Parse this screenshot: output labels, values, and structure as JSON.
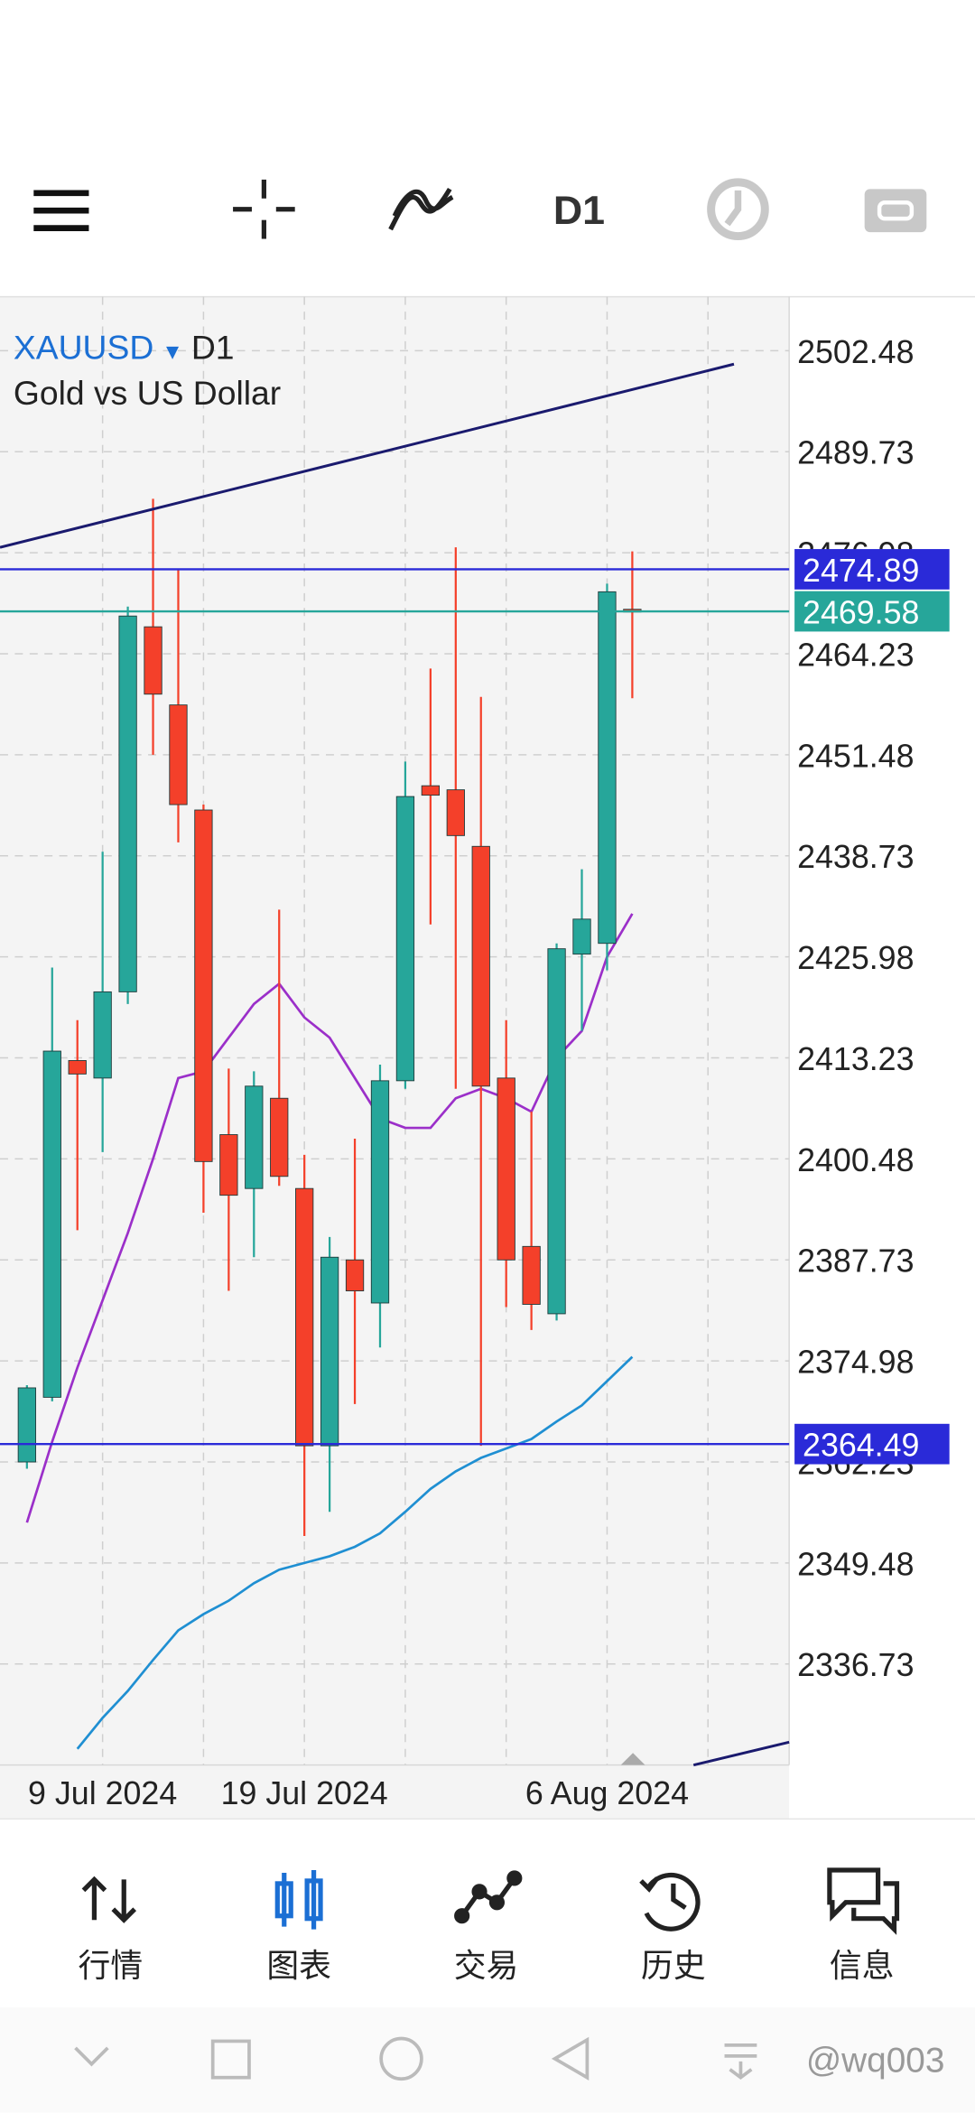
{
  "toolbar": {
    "timeframe": "D1"
  },
  "chart_data": {
    "type": "candlestick",
    "symbol": "XAUUSD",
    "timeframe": "D1",
    "subtitle": "Gold vs US Dollar",
    "categories": [
      null,
      null,
      null,
      "9 Jul 2024",
      null,
      null,
      null,
      null,
      null,
      null,
      null,
      "19 Jul 2024",
      null,
      null,
      null,
      null,
      null,
      null,
      null,
      null,
      null,
      null,
      null,
      "6 Aug 2024",
      null
    ],
    "open": [
      2362.23,
      2370.39,
      2412.89,
      2410.68,
      2421.56,
      2467.63,
      2457.77,
      2444.51,
      2403.54,
      2396.74,
      2408.13,
      2396.74,
      2364.27,
      2387.73,
      2382.29,
      2410.34,
      2447.57,
      2447.06,
      2439.92,
      2410.68,
      2389.43,
      2380.93,
      2426.32,
      2427.68,
      2469.84
    ],
    "high": [
      2371.92,
      2424.62,
      2417.99,
      2439.24,
      2470.18,
      2483.78,
      2474.94,
      2445.19,
      2411.87,
      2411.53,
      2431.93,
      2400.99,
      2390.62,
      2403.03,
      2412.38,
      2450.63,
      2462.36,
      2477.66,
      2458.79,
      2417.99,
      2406.43,
      2427.68,
      2437.03,
      2473.07,
      2477.15
    ],
    "low": [
      2361.38,
      2369.88,
      2391.47,
      2401.33,
      2420.03,
      2451.48,
      2440.43,
      2393.68,
      2383.82,
      2388.07,
      2397.08,
      2352.88,
      2355.94,
      2369.54,
      2376.68,
      2409.32,
      2430.06,
      2409.32,
      2364.27,
      2381.78,
      2378.89,
      2380.08,
      2416.63,
      2424.28,
      2458.62
    ],
    "close": [
      2371.58,
      2414.08,
      2411.19,
      2421.56,
      2468.99,
      2459.13,
      2445.19,
      2400.14,
      2395.89,
      2409.66,
      2398.27,
      2364.27,
      2388.07,
      2383.82,
      2410.34,
      2446.21,
      2446.38,
      2441.28,
      2409.66,
      2387.73,
      2382.12,
      2427.0,
      2430.74,
      2472.05,
      2469.58
    ],
    "up_color": "#26a69a",
    "down_color": "#f4402a",
    "ylim": [
      2323.98,
      2509.28
    ],
    "yticks": [
      2336.73,
      2349.48,
      2362.23,
      2374.98,
      2387.73,
      2400.48,
      2413.23,
      2425.98,
      2438.73,
      2451.48,
      2464.23,
      2476.98,
      2489.73,
      2502.48
    ],
    "grid": true,
    "overlays": [
      {
        "color": "#9b2fc9",
        "values": [
          2354.58,
          2364.78,
          2374.13,
          2382.63,
          2391.13,
          2400.48,
          2410.68,
          2411.53,
          2415.78,
          2420.03,
          2422.58,
          2418.33,
          2415.78,
          2410.68,
          2405.58,
          2404.39,
          2404.39,
          2408.13,
          2409.32,
          2408.13,
          2406.43,
          2413.23,
          2416.63,
          2425.98,
          2431.42
        ]
      },
      {
        "color": "#1f8fd2",
        "values": [
          null,
          null,
          2326.02,
          2329.93,
          2333.33,
          2337.24,
          2340.98,
          2343.02,
          2344.72,
          2346.93,
          2348.63,
          2349.48,
          2350.33,
          2351.52,
          2353.22,
          2355.94,
          2358.83,
          2361.04,
          2362.74,
          2363.93,
          2365.12,
          2367.33,
          2369.37,
          2372.43,
          2375.49
        ]
      }
    ],
    "price_lines": [
      {
        "value": 2474.89,
        "color": "#2a2ad8"
      },
      {
        "value": 2469.58,
        "color": "#26a69a"
      },
      {
        "value": 2364.49,
        "color": "#2a2ad8"
      }
    ]
  },
  "nav": {
    "items": [
      "行情",
      "图表",
      "交易",
      "历史",
      "信息"
    ],
    "active": 1
  },
  "watermark": "@wq003"
}
